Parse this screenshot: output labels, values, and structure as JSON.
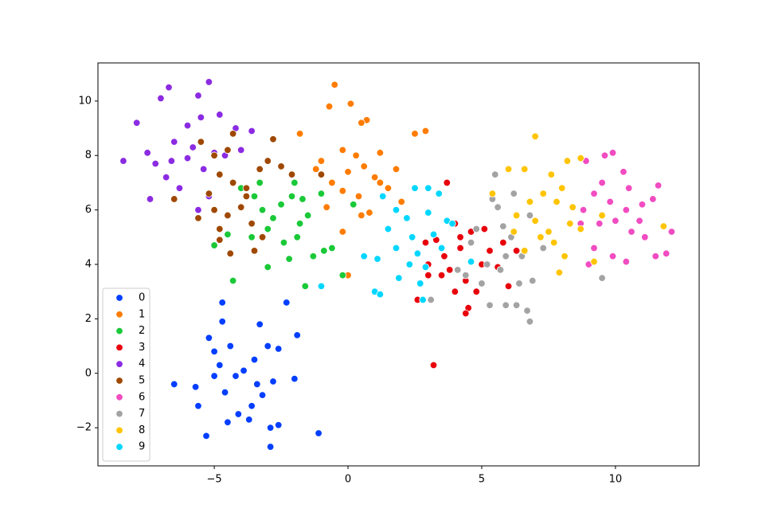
{
  "chart_data": {
    "type": "scatter",
    "xlim": [
      -9.35,
      13.13
    ],
    "ylim": [
      -3.4,
      11.4
    ],
    "xticks": [
      {
        "value": -5,
        "label": "−5"
      },
      0,
      5,
      10
    ],
    "yticks": [
      {
        "value": -2,
        "label": "−2"
      },
      0,
      2,
      4,
      6,
      8,
      10
    ],
    "grid": false,
    "legend": "lower left",
    "series": [
      {
        "name": "0",
        "color": "#023eff",
        "x": [
          -6.5,
          -5.7,
          -5.6,
          -4.7,
          -2.3,
          -1.1,
          -2.9,
          -1.9,
          -5.3,
          -4.7,
          -5.2,
          -5.0,
          -4.4,
          -3.9,
          -4.2,
          -3.5,
          -3.3,
          -3.0,
          -2.8,
          -3.2,
          -3.6,
          -4.1,
          -4.6,
          -4.8,
          -2.6,
          -2.9,
          -3.7,
          -5.0,
          -2.0,
          -2.6,
          -3.4,
          -4.5
        ],
        "y": [
          -0.4,
          -0.5,
          -1.2,
          2.6,
          2.6,
          -2.2,
          -2.7,
          1.4,
          -2.3,
          1.9,
          1.3,
          0.8,
          1.0,
          0.1,
          -0.1,
          0.5,
          1.8,
          1.0,
          -0.3,
          -0.8,
          -1.2,
          -1.5,
          -0.7,
          0.3,
          -1.9,
          -2.0,
          -1.7,
          -0.1,
          -0.2,
          0.9,
          -0.4,
          -1.8
        ]
      },
      {
        "name": "1",
        "color": "#ff7c00",
        "x": [
          -0.5,
          0.1,
          -0.7,
          0.7,
          0.5,
          2.9,
          2.5,
          -0.2,
          0.3,
          1.2,
          0.6,
          0.0,
          1.0,
          -0.6,
          -0.2,
          0.4,
          1.5,
          1.8,
          2.0,
          0.8,
          -0.2,
          0.0,
          -1.2,
          -1.8,
          -1.0,
          -0.8,
          1.2,
          0.5
        ],
        "y": [
          10.6,
          9.9,
          9.8,
          9.3,
          9.2,
          8.9,
          8.8,
          8.2,
          8.0,
          8.1,
          7.6,
          7.4,
          7.2,
          7.0,
          6.7,
          6.5,
          6.8,
          7.5,
          6.3,
          5.9,
          5.2,
          3.6,
          7.5,
          8.8,
          7.8,
          6.1,
          7.0,
          5.8
        ]
      },
      {
        "name": "2",
        "color": "#1ac938",
        "x": [
          -4.0,
          -3.5,
          -3.2,
          -2.8,
          -2.5,
          -2.1,
          -1.7,
          -1.5,
          -1.9,
          -2.4,
          -3.0,
          -3.6,
          -4.5,
          -5.0,
          -4.3,
          -3.0,
          -1.6,
          -0.9,
          -0.6,
          -1.3,
          -2.2,
          -0.2,
          -2.0,
          -3.3,
          -1.0,
          0.2,
          -1.8
        ],
        "y": [
          6.8,
          6.5,
          6.0,
          5.7,
          6.2,
          6.5,
          6.4,
          5.8,
          5.0,
          4.8,
          5.3,
          5.0,
          5.1,
          4.7,
          3.4,
          3.9,
          3.2,
          4.5,
          4.6,
          4.3,
          4.2,
          3.6,
          7.0,
          7.0,
          6.6,
          6.2,
          5.5
        ]
      },
      {
        "name": "3",
        "color": "#e8000b",
        "x": [
          3.2,
          3.7,
          4.0,
          4.6,
          5.1,
          4.2,
          3.6,
          3.3,
          3.0,
          3.5,
          4.4,
          4.0,
          4.5,
          4.4,
          3.0,
          2.6,
          5.0,
          5.3,
          5.6,
          6.0,
          6.3,
          5.8,
          3.8,
          4.8,
          2.9,
          4.2
        ],
        "y": [
          0.3,
          7.0,
          5.5,
          5.2,
          5.3,
          4.6,
          4.3,
          4.9,
          4.0,
          3.6,
          3.4,
          3.0,
          2.4,
          2.2,
          3.6,
          2.7,
          4.0,
          4.5,
          3.9,
          3.2,
          4.5,
          4.8,
          3.8,
          3.0,
          4.8,
          5.0
        ]
      },
      {
        "name": "4",
        "color": "#8b2be2",
        "x": [
          -8.4,
          -7.9,
          -6.7,
          -7.0,
          -5.2,
          -5.6,
          -7.5,
          -7.2,
          -6.5,
          -6.0,
          -5.8,
          -5.4,
          -5.0,
          -4.8,
          -4.2,
          -4.0,
          -3.6,
          -6.8,
          -7.4,
          -6.3,
          -5.6,
          -5.5,
          -4.6,
          -6.0,
          -5.2,
          -6.6
        ],
        "y": [
          7.8,
          9.2,
          10.5,
          10.1,
          10.7,
          10.2,
          8.1,
          7.7,
          8.5,
          9.1,
          8.3,
          7.5,
          8.1,
          9.5,
          9.0,
          8.2,
          8.9,
          7.2,
          6.4,
          6.8,
          6.0,
          9.4,
          8.0,
          7.9,
          6.5,
          7.8
        ]
      },
      {
        "name": "5",
        "color": "#9f4800",
        "x": [
          -5.5,
          -5.0,
          -4.5,
          -4.3,
          -2.8,
          -4.8,
          -4.3,
          -3.8,
          -3.3,
          -3.0,
          -5.2,
          -5.0,
          -4.5,
          -4.0,
          -3.6,
          -3.2,
          -4.8,
          -4.4,
          -3.5,
          -5.6,
          -6.5,
          -2.5,
          -1.0,
          -2.1,
          -3.8,
          -4.8
        ],
        "y": [
          8.5,
          8.0,
          8.2,
          8.8,
          8.6,
          7.3,
          7.0,
          6.8,
          7.5,
          7.8,
          6.6,
          6.0,
          5.8,
          6.1,
          5.5,
          5.0,
          5.3,
          4.4,
          4.5,
          5.7,
          6.4,
          7.6,
          7.3,
          7.3,
          6.5,
          4.9
        ]
      },
      {
        "name": "6",
        "color": "#f14cc1",
        "x": [
          9.6,
          9.9,
          10.3,
          8.9,
          9.5,
          10.5,
          11.6,
          9.2,
          9.8,
          10.4,
          11.0,
          11.4,
          12.1,
          11.9,
          11.5,
          11.1,
          10.6,
          10.0,
          9.4,
          8.8,
          9.2,
          9.9,
          10.4,
          9.0,
          8.7,
          10.9
        ],
        "y": [
          8.0,
          8.1,
          7.4,
          7.8,
          7.0,
          6.8,
          6.9,
          6.6,
          6.3,
          6.0,
          6.2,
          6.4,
          5.2,
          4.4,
          4.3,
          5.0,
          5.2,
          5.6,
          5.5,
          6.0,
          4.6,
          4.3,
          4.1,
          4.0,
          5.5,
          5.6
        ]
      },
      {
        "name": "7",
        "color": "#a3a3a3",
        "x": [
          6.8,
          6.7,
          6.3,
          5.9,
          5.3,
          6.4,
          6.9,
          5.7,
          5.2,
          5.9,
          6.5,
          6.1,
          5.8,
          5.6,
          5.4,
          5.5,
          6.2,
          4.8,
          4.6,
          5.0,
          4.4,
          7.3,
          9.5,
          6.8,
          3.1,
          4.1
        ],
        "y": [
          1.9,
          2.3,
          2.5,
          2.5,
          2.5,
          3.3,
          3.4,
          3.8,
          4.0,
          4.3,
          4.3,
          5.0,
          5.4,
          6.1,
          6.4,
          7.3,
          6.6,
          5.3,
          4.8,
          3.3,
          3.6,
          4.6,
          3.5,
          5.8,
          2.7,
          3.8
        ]
      },
      {
        "name": "8",
        "color": "#ffc400",
        "x": [
          7.0,
          6.0,
          6.6,
          7.6,
          8.2,
          8.7,
          7.3,
          8.0,
          7.8,
          8.4,
          6.8,
          6.3,
          7.0,
          7.5,
          8.3,
          8.7,
          7.7,
          8.1,
          7.9,
          6.6,
          6.2,
          9.2,
          9.5,
          11.8,
          7.2,
          5.4
        ],
        "y": [
          8.7,
          7.5,
          7.5,
          7.3,
          7.8,
          7.9,
          6.6,
          6.8,
          6.3,
          6.1,
          6.3,
          5.8,
          5.6,
          5.2,
          5.5,
          5.3,
          4.8,
          4.3,
          3.7,
          4.5,
          5.2,
          4.1,
          5.8,
          5.4,
          5.0,
          6.6
        ]
      },
      {
        "name": "9",
        "color": "#00d7ff",
        "x": [
          1.3,
          2.5,
          3.0,
          3.4,
          1.8,
          2.2,
          3.0,
          3.7,
          1.5,
          2.4,
          3.2,
          1.8,
          2.6,
          3.5,
          1.1,
          2.3,
          2.9,
          1.9,
          2.7,
          1.0,
          1.2,
          0.6,
          -1.0,
          2.8,
          4.6,
          3.9
        ],
        "y": [
          6.5,
          6.8,
          6.8,
          6.6,
          6.0,
          5.7,
          5.9,
          5.6,
          5.3,
          5.0,
          5.1,
          4.6,
          4.4,
          4.6,
          4.2,
          4.0,
          3.9,
          3.5,
          3.3,
          3.0,
          2.9,
          4.3,
          3.2,
          2.7,
          4.1,
          5.5
        ]
      }
    ]
  }
}
